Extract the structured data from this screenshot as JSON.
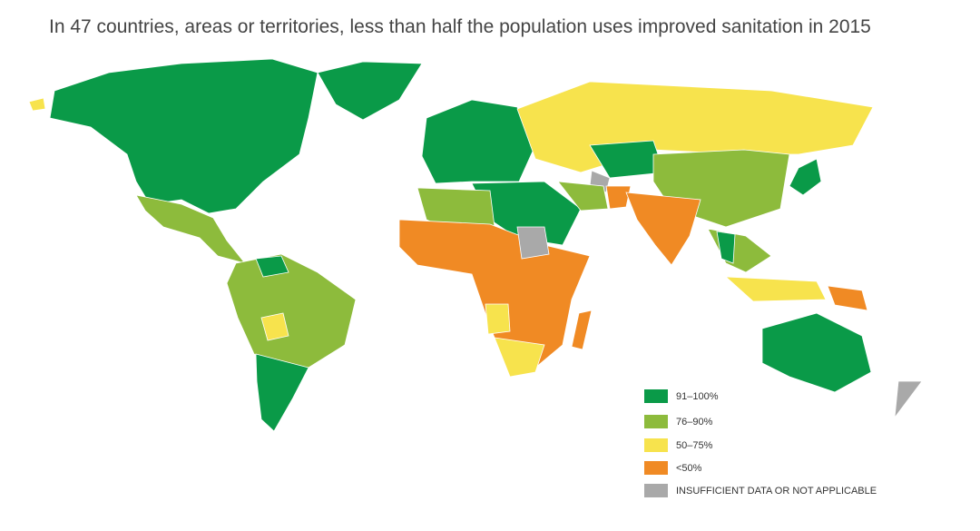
{
  "title": "In 47 countries, areas or territories, less than half the population uses improved sanitation in 2015",
  "legend": [
    {
      "label": "91–100%",
      "color": "#0a9a48"
    },
    {
      "label": "76–90%",
      "color": "#8dbb3c"
    },
    {
      "label": "50–75%",
      "color": "#f7e34d"
    },
    {
      "label": "<50%",
      "color": "#f08a24"
    },
    {
      "label": "INSUFFICIENT DATA OR NOT APPLICABLE",
      "color": "#a9a9a9"
    }
  ]
}
